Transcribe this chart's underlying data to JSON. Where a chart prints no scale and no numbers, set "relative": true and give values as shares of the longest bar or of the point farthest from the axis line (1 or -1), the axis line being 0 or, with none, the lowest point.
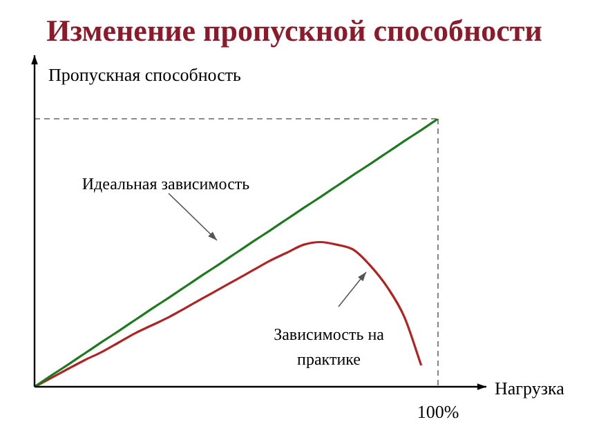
{
  "chart_data": {
    "type": "line",
    "title": "Изменение пропускной способности",
    "xlabel": "Нагрузка",
    "ylabel": "Пропускная способность",
    "relative": true,
    "legend": false,
    "marker": "none",
    "line_style": "solid",
    "categories": [
      null,
      null,
      null,
      null,
      null,
      null,
      null,
      null,
      null,
      null,
      null,
      null,
      null,
      null,
      null,
      null,
      null,
      null,
      null,
      null,
      null,
      null,
      null,
      null,
      null
    ],
    "series": [
      {
        "color": "#1e7a1e",
        "values": [
          0,
          0.042,
          0.083,
          0.125,
          0.167,
          0.208,
          0.25,
          0.292,
          0.333,
          0.375,
          0.417,
          0.458,
          0.5,
          0.542,
          0.583,
          0.625,
          0.667,
          0.708,
          0.75,
          0.792,
          0.833,
          0.875,
          0.917,
          0.958,
          1
        ]
      },
      {
        "color": "#b22222",
        "values": [
          0,
          0.033,
          0.067,
          0.1,
          0.13,
          0.165,
          0.2,
          0.23,
          0.26,
          0.295,
          0.33,
          0.365,
          0.4,
          0.435,
          0.47,
          0.5,
          0.53,
          0.54,
          0.53,
          0.51,
          0.45,
          0.37,
          0.26,
          0.08,
          null
        ]
      }
    ],
    "ref_lines": [
      {
        "axis": "y",
        "value": 1,
        "line_style": "dashed",
        "color": "#666666"
      },
      {
        "axis": "x",
        "label": "100%",
        "line_style": "dashed",
        "color": "#666666"
      }
    ],
    "annotations": [
      "Идеальная зависимость",
      "Зависимость на практике"
    ]
  }
}
